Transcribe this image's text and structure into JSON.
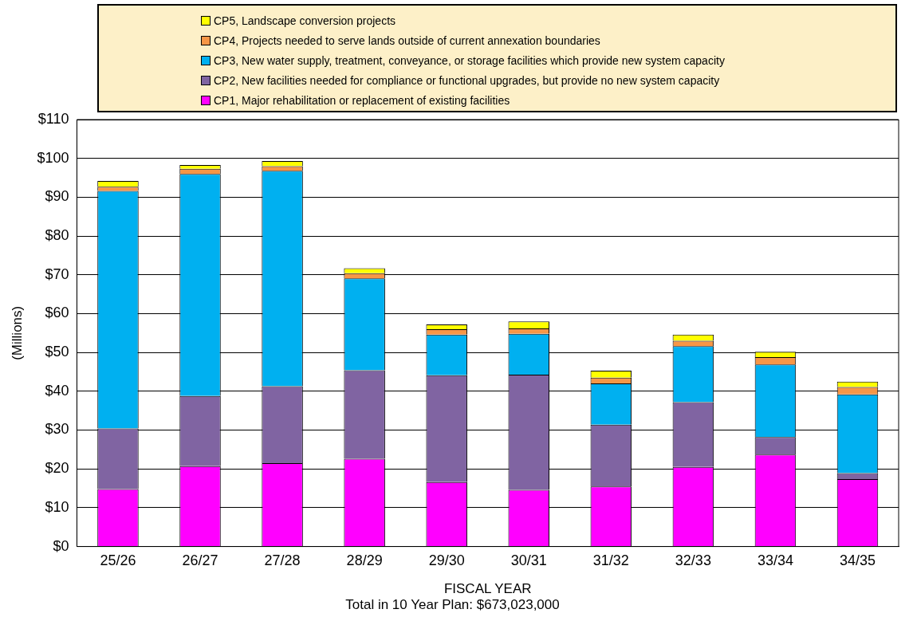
{
  "chart_data": {
    "type": "bar",
    "stacked": true,
    "xlabel": "FISCAL YEAR",
    "ylabel": "(Millions)",
    "annotations": [
      "Total in 10 Year Plan: $673,023,000"
    ],
    "categories": [
      "25/26",
      "26/27",
      "27/28",
      "28/29",
      "29/30",
      "30/31",
      "31/32",
      "32/33",
      "33/34",
      "34/35"
    ],
    "series": [
      {
        "name": "CP1, Major rehabilitation or replacement of existing facilities",
        "color": "#ff00ff",
        "values": [
          14.8,
          20.7,
          21.5,
          22.6,
          16.6,
          14.6,
          15.5,
          20.5,
          23.7,
          17.4
        ]
      },
      {
        "name": "CP2, New facilities needed for compliance or functional upgrades, but provide no new system capacity",
        "color": "#8064a2",
        "values": [
          15.6,
          18.1,
          19.8,
          22.8,
          27.5,
          29.7,
          15.9,
          16.7,
          4.5,
          1.5
        ]
      },
      {
        "name": "CP3, New water supply, treatment, conveyance, or storage facilities which provide new system capacity",
        "color": "#00b0f0",
        "values": [
          61.2,
          57.2,
          55.5,
          23.7,
          10.5,
          10.5,
          10.6,
          14.4,
          18.7,
          20.3
        ]
      },
      {
        "name": "CP4, Projects needed to serve lands outside of current annexation boundaries",
        "color": "#f79646",
        "values": [
          1.1,
          1.3,
          1.2,
          1.3,
          1.4,
          1.4,
          1.5,
          1.4,
          1.9,
          1.9
        ]
      },
      {
        "name": "CP5, Landscape conversion projects",
        "color": "#ffff00",
        "values": [
          1.5,
          1.0,
          1.3,
          1.3,
          1.2,
          1.8,
          1.8,
          1.6,
          1.4,
          1.4
        ]
      }
    ],
    "ylim": [
      0,
      110
    ],
    "yticks": [
      {
        "value": 0,
        "label": "$0"
      },
      {
        "value": 10,
        "label": "$10"
      },
      {
        "value": 20,
        "label": "$20"
      },
      {
        "value": 30,
        "label": "$30"
      },
      {
        "value": 40,
        "label": "$40"
      },
      {
        "value": 50,
        "label": "$50"
      },
      {
        "value": 60,
        "label": "$60"
      },
      {
        "value": 70,
        "label": "$70"
      },
      {
        "value": 80,
        "label": "$80"
      },
      {
        "value": 90,
        "label": "$90"
      },
      {
        "value": 100,
        "label": "$100"
      },
      {
        "value": 110,
        "label": "$110"
      }
    ],
    "grid": "y",
    "legend": "top"
  }
}
